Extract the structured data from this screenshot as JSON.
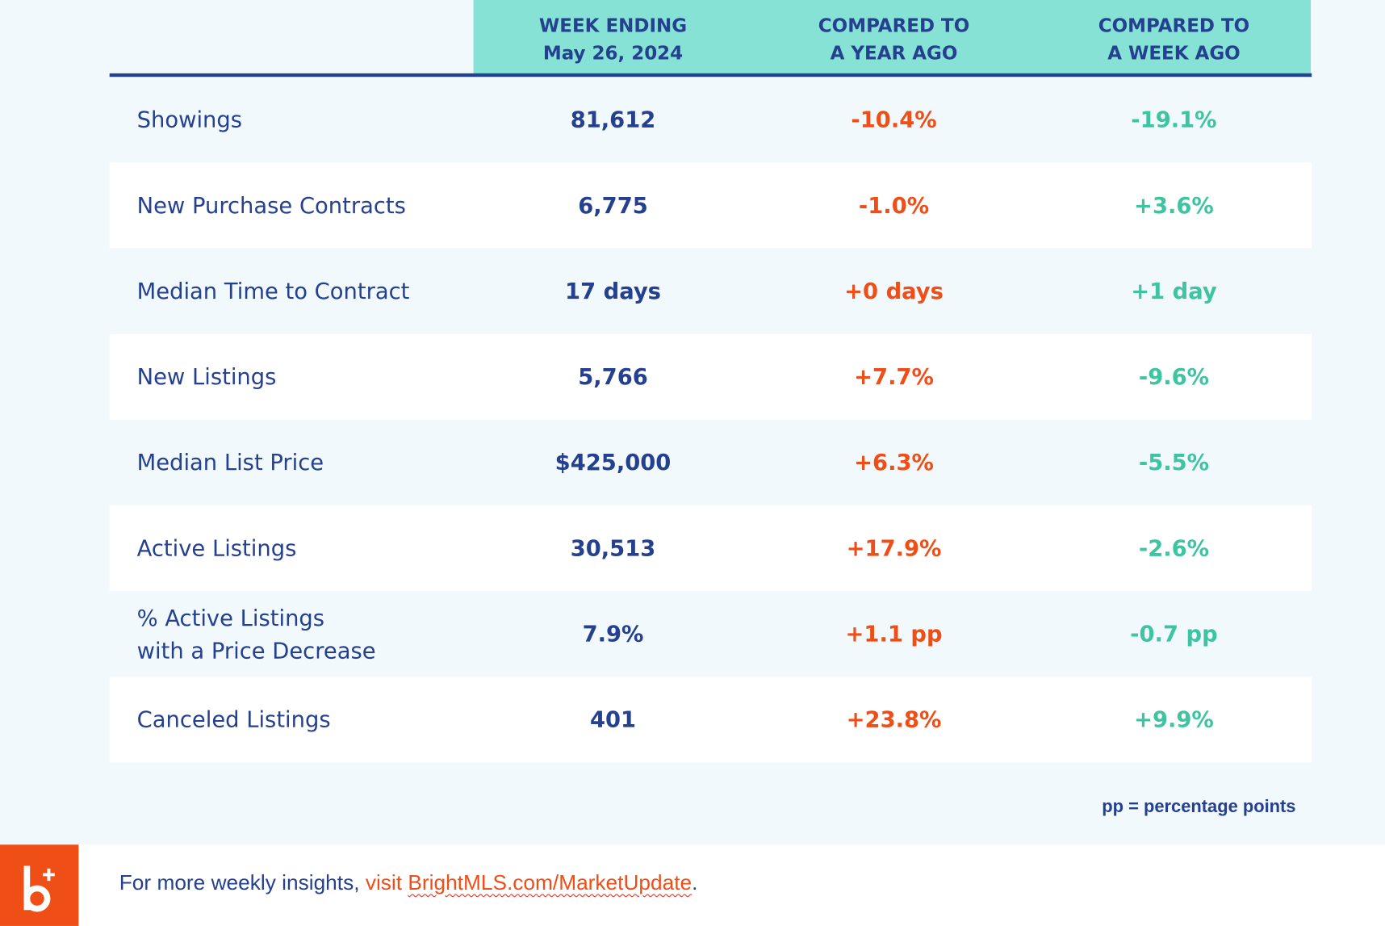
{
  "colors": {
    "navy": "#24408f",
    "orange": "#f04e17",
    "green": "#3fc4a1",
    "header_band": "#86e2d5",
    "background": "#f1f9fd"
  },
  "header": {
    "col1_line1": "WEEK ENDING",
    "col1_line2": "May 26, 2024",
    "col2_line1": "COMPARED TO",
    "col2_line2": "A YEAR AGO",
    "col3_line1": "COMPARED TO",
    "col3_line2": "A WEEK AGO"
  },
  "rows": [
    {
      "label_line1": "Showings",
      "value": "81,612",
      "year_change": "-10.4%",
      "week_change": "-19.1%"
    },
    {
      "label_line1": "New Purchase Contracts",
      "value": "6,775",
      "year_change": "-1.0%",
      "week_change": "+3.6%"
    },
    {
      "label_line1": "Median Time to Contract",
      "value": "17 days",
      "year_change": "+0 days",
      "week_change": "+1 day"
    },
    {
      "label_line1": "New Listings",
      "value": "5,766",
      "year_change": "+7.7%",
      "week_change": "-9.6%"
    },
    {
      "label_line1": "Median List Price",
      "value": "$425,000",
      "year_change": "+6.3%",
      "week_change": "-5.5%"
    },
    {
      "label_line1": "Active Listings",
      "value": "30,513",
      "year_change": "+17.9%",
      "week_change": "-2.6%"
    },
    {
      "label_line1": "% Active Listings",
      "label_line2": "with a Price Decrease",
      "value": "7.9%",
      "year_change": "+1.1 pp",
      "week_change": "-0.7 pp"
    },
    {
      "label_line1": "Canceled Listings",
      "value": "401",
      "year_change": "+23.8%",
      "week_change": "+9.9%"
    }
  ],
  "footnote": "pp = percentage points",
  "footer": {
    "prefix": "For more weekly insights, ",
    "visit": "visit ",
    "link": "BrightMLS.com/MarketUpdate",
    "suffix": ".",
    "logo_icon": "bright-mls-logo-icon"
  }
}
